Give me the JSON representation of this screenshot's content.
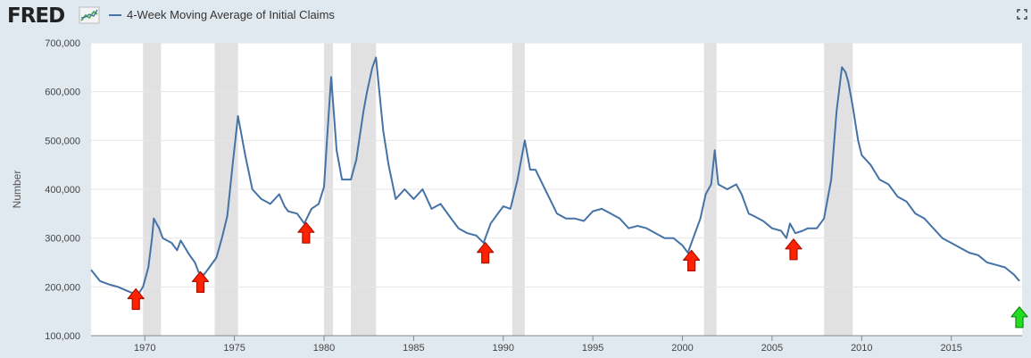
{
  "header": {
    "logo_text": "FRED",
    "logo_graph_icon": "line-chart-icon",
    "fullscreen_icon": "expand-icon"
  },
  "colors": {
    "series": "#4572a7",
    "recession": "#e1e1e1",
    "plot_bg": "#ffffff",
    "page_bg": "#e1e9f0",
    "red_arrow": "#ff2200",
    "green_arrow": "#22dd22"
  },
  "chart_data": {
    "type": "line",
    "xlabel": "",
    "ylabel": "Number",
    "xlim": [
      1967.0,
      2018.95
    ],
    "ylim": [
      100000,
      700000
    ],
    "y_ticks": [
      100000,
      200000,
      300000,
      400000,
      500000,
      600000,
      700000
    ],
    "y_tick_labels": [
      "100,000",
      "200,000",
      "300,000",
      "400,000",
      "500,000",
      "600,000",
      "700,000"
    ],
    "x_ticks": [
      1970,
      1975,
      1980,
      1985,
      1990,
      1995,
      2000,
      2005,
      2010,
      2015
    ],
    "x_tick_labels": [
      "1970",
      "1975",
      "1980",
      "1985",
      "1990",
      "1995",
      "2000",
      "2005",
      "2010",
      "2015"
    ],
    "grid": true,
    "legend_position": "top-left",
    "recessions": [
      [
        1969.9,
        1970.9
      ],
      [
        1973.9,
        1975.2
      ],
      [
        1980.0,
        1980.5
      ],
      [
        1981.5,
        1982.9
      ],
      [
        1990.5,
        1991.2
      ],
      [
        2001.2,
        2001.9
      ],
      [
        2007.9,
        2009.5
      ]
    ],
    "series": [
      {
        "name": "4-Week Moving Average of Initial Claims",
        "x": [
          1967.0,
          1967.5,
          1968.0,
          1968.5,
          1969.0,
          1969.6,
          1969.9,
          1970.2,
          1970.4,
          1970.5,
          1970.8,
          1971.0,
          1971.5,
          1971.8,
          1972.0,
          1972.5,
          1972.8,
          1973.0,
          1973.3,
          1973.6,
          1974.0,
          1974.3,
          1974.6,
          1974.9,
          1975.2,
          1975.6,
          1976.0,
          1976.5,
          1977.0,
          1977.5,
          1977.8,
          1978.0,
          1978.5,
          1978.9,
          1979.3,
          1979.7,
          1980.0,
          1980.2,
          1980.4,
          1980.7,
          1981.0,
          1981.5,
          1981.8,
          1982.2,
          1982.4,
          1982.7,
          1982.9,
          1983.3,
          1983.6,
          1984.0,
          1984.5,
          1985.0,
          1985.5,
          1986.0,
          1986.5,
          1987.0,
          1987.5,
          1988.0,
          1988.5,
          1988.9,
          1989.3,
          1989.7,
          1990.0,
          1990.4,
          1990.8,
          1991.2,
          1991.5,
          1991.8,
          1992.2,
          1992.6,
          1993.0,
          1993.5,
          1994.0,
          1994.5,
          1995.0,
          1995.5,
          1996.0,
          1996.5,
          1997.0,
          1997.5,
          1998.0,
          1998.5,
          1999.0,
          1999.5,
          2000.0,
          2000.3,
          2000.6,
          2001.0,
          2001.3,
          2001.6,
          2001.8,
          2002.0,
          2002.5,
          2003.0,
          2003.3,
          2003.7,
          2004.0,
          2004.5,
          2005.0,
          2005.5,
          2005.8,
          2006.0,
          2006.3,
          2006.7,
          2007.0,
          2007.5,
          2007.9,
          2008.3,
          2008.6,
          2008.9,
          2009.1,
          2009.25,
          2009.5,
          2009.8,
          2010.0,
          2010.5,
          2011.0,
          2011.5,
          2012.0,
          2012.5,
          2013.0,
          2013.5,
          2014.0,
          2014.5,
          2015.0,
          2015.5,
          2016.0,
          2016.5,
          2017.0,
          2017.5,
          2018.0,
          2018.5,
          2018.8
        ],
        "values": [
          235000,
          212000,
          205000,
          200000,
          192000,
          183000,
          200000,
          240000,
          300000,
          340000,
          320000,
          300000,
          290000,
          275000,
          295000,
          265000,
          250000,
          230000,
          225000,
          240000,
          260000,
          300000,
          345000,
          450000,
          550000,
          470000,
          400000,
          380000,
          370000,
          390000,
          365000,
          355000,
          350000,
          330000,
          360000,
          370000,
          405000,
          520000,
          630000,
          480000,
          420000,
          420000,
          460000,
          560000,
          600000,
          650000,
          670000,
          520000,
          450000,
          380000,
          400000,
          380000,
          400000,
          360000,
          370000,
          345000,
          320000,
          310000,
          305000,
          290000,
          330000,
          350000,
          365000,
          360000,
          420000,
          500000,
          440000,
          440000,
          410000,
          380000,
          350000,
          340000,
          340000,
          335000,
          355000,
          360000,
          350000,
          340000,
          320000,
          325000,
          320000,
          310000,
          300000,
          300000,
          285000,
          270000,
          300000,
          340000,
          390000,
          410000,
          480000,
          410000,
          400000,
          410000,
          390000,
          350000,
          345000,
          335000,
          320000,
          315000,
          300000,
          330000,
          310000,
          315000,
          320000,
          320000,
          340000,
          420000,
          560000,
          650000,
          640000,
          620000,
          570000,
          500000,
          470000,
          450000,
          420000,
          410000,
          385000,
          375000,
          350000,
          340000,
          320000,
          300000,
          290000,
          280000,
          270000,
          265000,
          250000,
          245000,
          240000,
          225000,
          212000
        ]
      }
    ],
    "annotations": [
      {
        "type": "arrow",
        "color": "red",
        "x": 1969.5,
        "y": 174000
      },
      {
        "type": "arrow",
        "color": "red",
        "x": 1973.1,
        "y": 209000
      },
      {
        "type": "arrow",
        "color": "red",
        "x": 1979.0,
        "y": 310000
      },
      {
        "type": "arrow",
        "color": "red",
        "x": 1989.0,
        "y": 269000
      },
      {
        "type": "arrow",
        "color": "red",
        "x": 2000.5,
        "y": 253000
      },
      {
        "type": "arrow",
        "color": "red",
        "x": 2006.2,
        "y": 276000
      },
      {
        "type": "arrow",
        "color": "green",
        "x": 2018.8,
        "y": 137000
      }
    ]
  }
}
